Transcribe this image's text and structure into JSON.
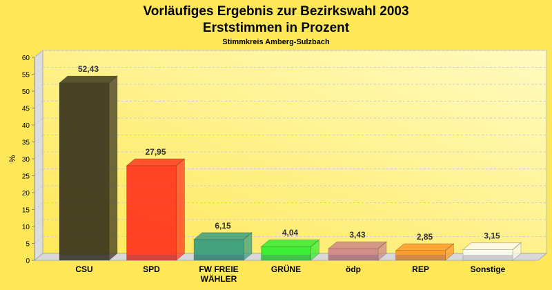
{
  "chart_data": {
    "type": "bar",
    "title": "Vorläufiges Ergebnis zur Bezirkswahl 2003",
    "subtitle": "Erststimmen in Prozent",
    "subtitle2": "Stimmkreis Amberg-Sulzbach",
    "xlabel": "",
    "ylabel": "%",
    "ylim": [
      0,
      60
    ],
    "yticks": [
      "0",
      "5",
      "10",
      "15",
      "20",
      "25",
      "30",
      "35",
      "40",
      "45",
      "50",
      "55",
      "60"
    ],
    "grid": true,
    "categories": [
      "CSU",
      "SPD",
      "FW FREIE WÄHLER",
      "GRÜNE",
      "ödp",
      "REP",
      "Sonstige"
    ],
    "category_lines": [
      [
        "CSU"
      ],
      [
        "SPD"
      ],
      [
        "FW FREIE",
        "WÄHLER"
      ],
      [
        "GRÜNE"
      ],
      [
        "ödp"
      ],
      [
        "REP"
      ],
      [
        "Sonstige"
      ]
    ],
    "values": [
      52.43,
      27.95,
      6.15,
      4.04,
      3.43,
      2.85,
      3.15
    ],
    "data_labels": [
      "52,43",
      "27,95",
      "6,15",
      "4,04",
      "3,43",
      "2,85",
      "3,15"
    ],
    "colors": [
      "#3f3a20",
      "#ff3a20",
      "#3aa080",
      "#33ee33",
      "#d08a88",
      "#ff9a2a",
      "#fbfbf0"
    ]
  }
}
